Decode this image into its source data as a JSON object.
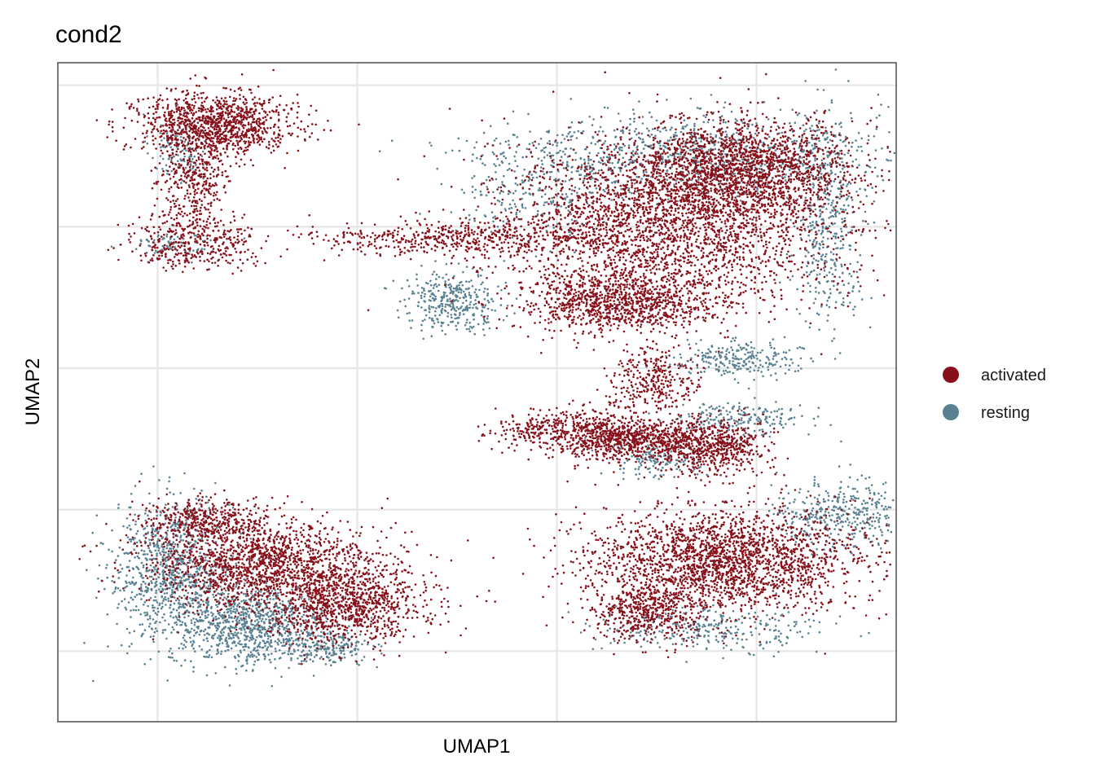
{
  "chart_data": {
    "type": "scatter",
    "title": "cond2",
    "xlabel": "UMAP1",
    "ylabel": "UMAP2",
    "xlim": [
      -11.5,
      9.5
    ],
    "ylim": [
      -12.5,
      10.8
    ],
    "x_gridlines": [
      -9,
      -4,
      1,
      6
    ],
    "y_gridlines": [
      -10,
      -5,
      0,
      5,
      10
    ],
    "tick_labels_shown": false,
    "grid": true,
    "legend_position": "right",
    "legend": [
      {
        "name": "activated",
        "color": "#87111A"
      },
      {
        "name": "resting",
        "color": "#5A8191"
      }
    ],
    "series": [
      {
        "name": "resting",
        "color": "#5A8191",
        "clusters": [
          {
            "cx": -8.5,
            "cy": 7.8,
            "sx": 0.35,
            "sy": 0.6,
            "n": 120
          },
          {
            "cx": -8.6,
            "cy": 4.4,
            "sx": 0.55,
            "sy": 0.25,
            "n": 90
          },
          {
            "cx": -8.6,
            "cy": -7.1,
            "sx": 0.75,
            "sy": 1.2,
            "n": 900
          },
          {
            "cx": -6.7,
            "cy": -9.1,
            "sx": 1.0,
            "sy": 0.7,
            "n": 900
          },
          {
            "cx": -4.8,
            "cy": -9.9,
            "sx": 0.6,
            "sy": 0.3,
            "n": 200
          },
          {
            "cx": 4.5,
            "cy": 7.6,
            "sx": 2.4,
            "sy": 0.75,
            "n": 900
          },
          {
            "cx": 0.5,
            "cy": 6.3,
            "sx": 1.0,
            "sy": 0.9,
            "n": 250
          },
          {
            "cx": -1.6,
            "cy": 2.4,
            "sx": 0.6,
            "sy": 0.5,
            "n": 350
          },
          {
            "cx": 7.8,
            "cy": 5.2,
            "sx": 0.45,
            "sy": 1.8,
            "n": 400
          },
          {
            "cx": 5.5,
            "cy": 0.3,
            "sx": 0.8,
            "sy": 0.3,
            "n": 250
          },
          {
            "cx": 3.5,
            "cy": -3.2,
            "sx": 0.6,
            "sy": 0.3,
            "n": 150
          },
          {
            "cx": 5.6,
            "cy": -1.8,
            "sx": 0.8,
            "sy": 0.3,
            "n": 200
          },
          {
            "cx": 8.2,
            "cy": -5.2,
            "sx": 0.9,
            "sy": 0.6,
            "n": 400
          },
          {
            "cx": 4.7,
            "cy": -9.2,
            "sx": 1.4,
            "sy": 0.4,
            "n": 300
          }
        ]
      },
      {
        "name": "activated",
        "color": "#87111A",
        "clusters": [
          {
            "cx": -7.6,
            "cy": 8.6,
            "sx": 1.0,
            "sy": 0.55,
            "n": 1100
          },
          {
            "cx": -8.1,
            "cy": 6.6,
            "sx": 0.45,
            "sy": 0.8,
            "n": 350
          },
          {
            "cx": -8.1,
            "cy": 4.4,
            "sx": 0.8,
            "sy": 0.45,
            "n": 350
          },
          {
            "cx": -6.4,
            "cy": -7.0,
            "sx": 1.5,
            "sy": 0.8,
            "n": 1600
          },
          {
            "cx": -4.3,
            "cy": -8.4,
            "sx": 1.0,
            "sy": 0.7,
            "n": 900
          },
          {
            "cx": -7.8,
            "cy": -5.4,
            "sx": 0.8,
            "sy": 0.4,
            "n": 400
          },
          {
            "cx": 3.7,
            "cy": 5.0,
            "sx": 2.2,
            "sy": 1.4,
            "n": 2600
          },
          {
            "cx": 5.5,
            "cy": 7.0,
            "sx": 1.4,
            "sy": 0.9,
            "n": 1800
          },
          {
            "cx": 2.6,
            "cy": 2.3,
            "sx": 1.2,
            "sy": 0.55,
            "n": 1000
          },
          {
            "cx": -1.5,
            "cy": 4.6,
            "sx": 1.9,
            "sy": 0.3,
            "n": 500
          },
          {
            "cx": 2.3,
            "cy": -2.4,
            "sx": 0.7,
            "sy": 0.5,
            "n": 500
          },
          {
            "cx": 3.3,
            "cy": -2.5,
            "sx": 1.0,
            "sy": 0.3,
            "n": 500
          },
          {
            "cx": 5.0,
            "cy": -2.8,
            "sx": 0.7,
            "sy": 0.5,
            "n": 500
          },
          {
            "cx": 0.5,
            "cy": -2.2,
            "sx": 0.6,
            "sy": 0.35,
            "n": 200
          },
          {
            "cx": 5.3,
            "cy": -6.8,
            "sx": 1.7,
            "sy": 0.9,
            "n": 2200
          },
          {
            "cx": 3.3,
            "cy": -8.6,
            "sx": 0.7,
            "sy": 0.5,
            "n": 500
          },
          {
            "cx": 3.4,
            "cy": -0.4,
            "sx": 0.5,
            "sy": 0.6,
            "n": 300
          }
        ]
      }
    ]
  }
}
